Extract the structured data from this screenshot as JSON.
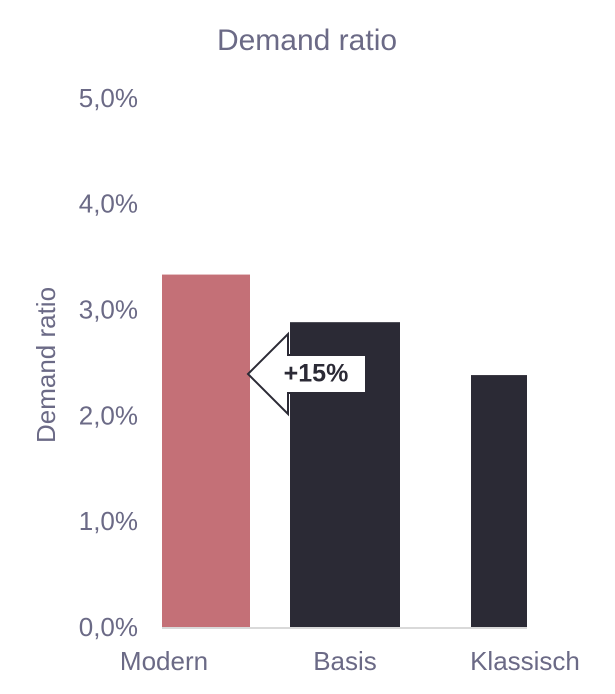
{
  "chart_data": {
    "type": "bar",
    "title": "Demand ratio",
    "y_label": "Demand ratio",
    "categories": [
      "Modern",
      "Basis",
      "Klassisch"
    ],
    "values": [
      3.35,
      2.9,
      2.4
    ],
    "colors": [
      "#c47077",
      "#2b2a35",
      "#2b2a35"
    ],
    "ylim": [
      0,
      5
    ],
    "yticks": [
      {
        "value": 0,
        "label": "0,0%"
      },
      {
        "value": 1,
        "label": "1,0%"
      },
      {
        "value": 2,
        "label": "2,0%"
      },
      {
        "value": 3,
        "label": "3,0%"
      },
      {
        "value": 4,
        "label": "4,0%"
      },
      {
        "value": 5,
        "label": "5,0%"
      }
    ],
    "grid": false,
    "annotation": "+15%"
  }
}
